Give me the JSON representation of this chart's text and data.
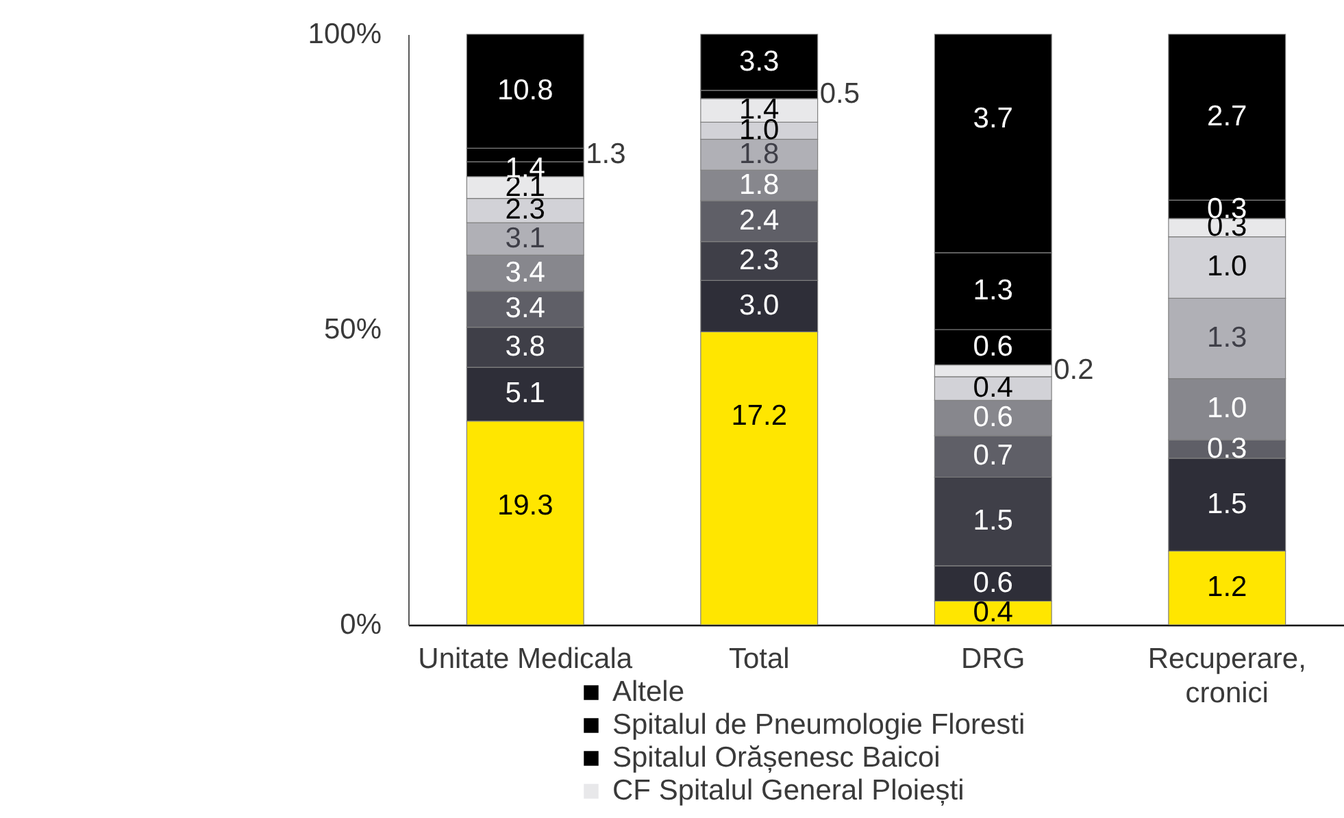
{
  "chart_data": {
    "type": "bar",
    "stacked": true,
    "categories": [
      "Unitate Medicala",
      "Total",
      "DRG",
      "Recuperare, cronici"
    ],
    "ylim": [
      0,
      100
    ],
    "yticks": [
      {
        "value": 0,
        "label": "0%"
      },
      {
        "value": 50,
        "label": "50%"
      },
      {
        "value": 100,
        "label": "100%"
      }
    ],
    "legend": "bottom",
    "series": [
      {
        "color": "#ffe600",
        "values": [
          34.5,
          49.6,
          4.0,
          12.5
        ]
      },
      {
        "color": "#2e2e38",
        "values": [
          9.1,
          8.7,
          6.0,
          15.7
        ]
      },
      {
        "color": "#3f3f48",
        "values": [
          6.8,
          6.6,
          15.0,
          null
        ]
      },
      {
        "color": "#5f5f67",
        "values": [
          6.1,
          6.9,
          7.0,
          3.1
        ]
      },
      {
        "color": "#87878d",
        "values": [
          6.1,
          5.2,
          6.0,
          10.4
        ]
      },
      {
        "color": "#b0b0b6",
        "values": [
          5.5,
          5.2,
          null,
          13.6
        ]
      },
      {
        "color": "#d2d2d7",
        "values": [
          4.1,
          2.9,
          4.0,
          10.4
        ]
      },
      {
        "name": "CF Spitalul General Ploiești",
        "color": "#e8e8ea",
        "values": [
          3.7,
          4.0,
          2.0,
          3.1
        ]
      },
      {
        "name": "Spitalul Orășenesc Baicoi",
        "color": "#000000",
        "values": [
          2.5,
          1.4,
          6.0,
          3.1
        ]
      },
      {
        "name": "Spitalul de Pneumologie Floresti",
        "color": "#000000",
        "values": [
          2.3,
          null,
          13.0,
          null
        ]
      },
      {
        "name": "Altele",
        "color": "#000000",
        "values": [
          19.3,
          9.5,
          37.0,
          28.1
        ]
      }
    ],
    "annotations": [
      {
        "text": "19.3",
        "x": "Unitate Medicala",
        "y": 34.5
      },
      {
        "text": "5.1",
        "x": "Unitate Medicala",
        "y": 43.6
      },
      {
        "text": "3.8",
        "x": "Unitate Medicala",
        "y": 50.4
      },
      {
        "text": "3.4",
        "x": "Unitate Medicala",
        "y": 56.5
      },
      {
        "text": "3.4",
        "x": "Unitate Medicala",
        "y": 62.6
      },
      {
        "text": "3.1",
        "x": "Unitate Medicala",
        "y": 68.1
      },
      {
        "text": "2.3",
        "x": "Unitate Medicala",
        "y": 72.2
      },
      {
        "text": "2.1",
        "x": "Unitate Medicala",
        "y": 75.9
      },
      {
        "text": "1.4",
        "x": "Unitate Medicala",
        "y": 78.4
      },
      {
        "text": "1.3",
        "x": "Unitate Medicala",
        "y": 80.7
      },
      {
        "text": "10.8",
        "x": "Unitate Medicala",
        "y": 100.0
      },
      {
        "text": "17.2",
        "x": "Total",
        "y": 49.6
      },
      {
        "text": "3.0",
        "x": "Total",
        "y": 58.3
      },
      {
        "text": "2.3",
        "x": "Total",
        "y": 64.9
      },
      {
        "text": "2.4",
        "x": "Total",
        "y": 71.8
      },
      {
        "text": "1.8",
        "x": "Total",
        "y": 77.0
      },
      {
        "text": "1.8",
        "x": "Total",
        "y": 82.2
      },
      {
        "text": "1.0",
        "x": "Total",
        "y": 85.1
      },
      {
        "text": "1.4",
        "x": "Total",
        "y": 89.1
      },
      {
        "text": "0.5",
        "x": "Total",
        "y": 90.5
      },
      {
        "text": "3.3",
        "x": "Total",
        "y": 100.0
      },
      {
        "text": "0.4",
        "x": "DRG",
        "y": 4.0
      },
      {
        "text": "0.6",
        "x": "DRG",
        "y": 10.0
      },
      {
        "text": "1.5",
        "x": "DRG",
        "y": 25.0
      },
      {
        "text": "0.7",
        "x": "DRG",
        "y": 32.0
      },
      {
        "text": "0.6",
        "x": "DRG",
        "y": 38.0
      },
      {
        "text": "0.4",
        "x": "DRG",
        "y": 42.0
      },
      {
        "text": "0.2",
        "x": "DRG",
        "y": 44.0
      },
      {
        "text": "0.6",
        "x": "DRG",
        "y": 50.0
      },
      {
        "text": "1.3",
        "x": "DRG",
        "y": 63.0
      },
      {
        "text": "3.7",
        "x": "DRG",
        "y": 100.0
      },
      {
        "text": "1.2",
        "x": "Recuperare, cronici",
        "y": 12.5
      },
      {
        "text": "1.5",
        "x": "Recuperare, cronici",
        "y": 28.2
      },
      {
        "text": "0.3",
        "x": "Recuperare, cronici",
        "y": 31.3
      },
      {
        "text": "1.0",
        "x": "Recuperare, cronici",
        "y": 41.7
      },
      {
        "text": "1.3",
        "x": "Recuperare, cronici",
        "y": 55.3
      },
      {
        "text": "1.0",
        "x": "Recuperare, cronici",
        "y": 65.7
      },
      {
        "text": "0.3",
        "x": "Recuperare, cronici",
        "y": 68.8
      },
      {
        "text": "0.3",
        "x": "Recuperare, cronici",
        "y": 71.9
      },
      {
        "text": "2.7",
        "x": "Recuperare, cronici",
        "y": 100.0
      }
    ]
  }
}
